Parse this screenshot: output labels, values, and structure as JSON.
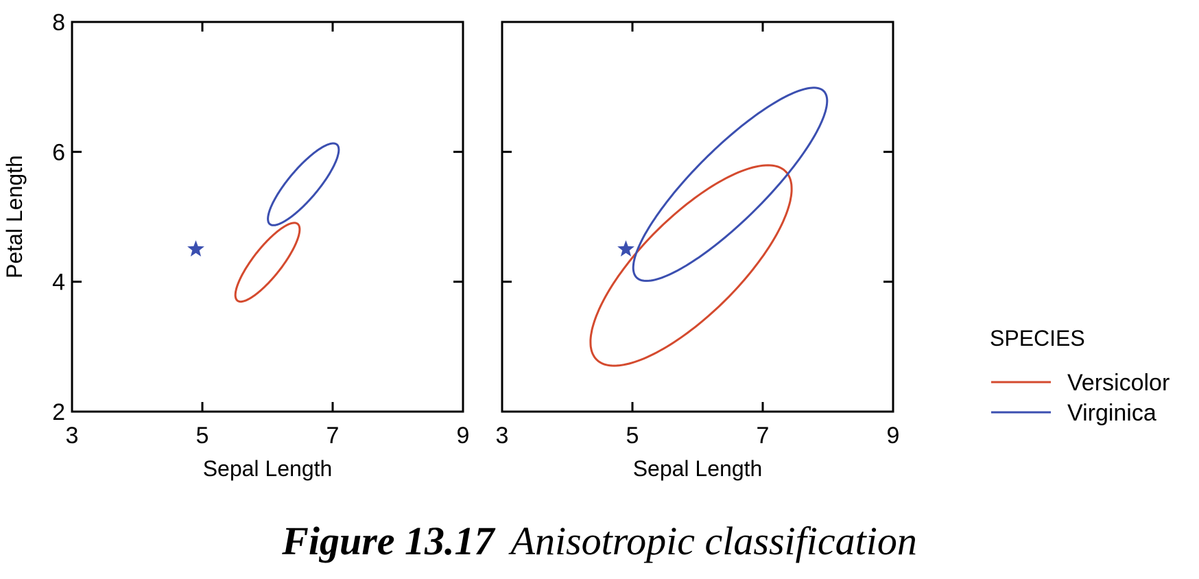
{
  "chart_data": [
    {
      "type": "scatter",
      "panel": "left",
      "xlabel": "Sepal Length",
      "ylabel": "Petal Length",
      "xlim": [
        3,
        9
      ],
      "ylim": [
        2,
        8
      ],
      "xticks": [
        "3",
        "5",
        "7",
        "9"
      ],
      "yticks": [
        "2",
        "4",
        "6",
        "8"
      ],
      "grid": false,
      "ellipses": [
        {
          "name": "Versicolor",
          "color": "#d44a2e",
          "center": [
            6.0,
            4.3
          ],
          "semi_axes": [
            0.75,
            0.22
          ],
          "angle_deg": 52
        },
        {
          "name": "Virginica",
          "color": "#3b4fb0",
          "center": [
            6.55,
            5.5
          ],
          "semi_axes": [
            0.8,
            0.23
          ],
          "angle_deg": 50
        }
      ],
      "points": [
        {
          "x": 4.9,
          "y": 4.5,
          "marker": "star",
          "color": "#3b4fb0"
        }
      ]
    },
    {
      "type": "scatter",
      "panel": "right",
      "xlabel": "Sepal Length",
      "ylabel": "",
      "xlim": [
        3,
        9
      ],
      "ylim": [
        2,
        8
      ],
      "xticks": [
        "3",
        "5",
        "7",
        "9"
      ],
      "yticks": [],
      "grid": false,
      "ellipses": [
        {
          "name": "Versicolor",
          "color": "#d44a2e",
          "center": [
            5.9,
            4.25
          ],
          "semi_axes": [
            2.05,
            0.75
          ],
          "angle_deg": 45
        },
        {
          "name": "Virginica",
          "color": "#3b4fb0",
          "center": [
            6.5,
            5.5
          ],
          "semi_axes": [
            2.03,
            0.55
          ],
          "angle_deg": 45
        }
      ],
      "points": [
        {
          "x": 4.9,
          "y": 4.5,
          "marker": "star",
          "color": "#3b4fb0"
        }
      ]
    }
  ],
  "legend": {
    "title": "SPECIES",
    "placement": "right",
    "items": [
      {
        "label": "Versicolor",
        "color": "#d44a2e"
      },
      {
        "label": "Virginica",
        "color": "#3b4fb0"
      }
    ]
  },
  "caption": {
    "number": "Figure 13.17",
    "text": "Anisotropic classification"
  }
}
